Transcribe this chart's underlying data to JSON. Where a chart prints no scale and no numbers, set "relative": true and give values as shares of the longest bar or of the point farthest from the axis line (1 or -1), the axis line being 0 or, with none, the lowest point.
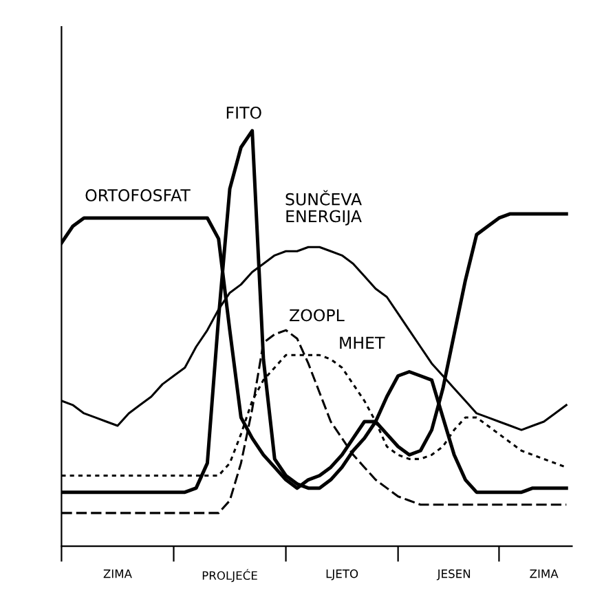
{
  "chart_data": {
    "type": "line",
    "relative": true,
    "tick_labels": "x",
    "grid": false,
    "legend": false,
    "marker": "none",
    "categories": [
      null,
      null,
      null,
      null,
      null,
      "ZIMA",
      null,
      null,
      null,
      null,
      null,
      null,
      null,
      null,
      null,
      "PROLJEĆE",
      null,
      null,
      null,
      null,
      null,
      null,
      null,
      null,
      null,
      "LJETO",
      null,
      null,
      null,
      null,
      null,
      null,
      null,
      null,
      null,
      "JESEN",
      null,
      null,
      null,
      null,
      null,
      null,
      null,
      "ZIMA",
      null,
      null
    ],
    "series": [
      {
        "color": "#000000",
        "line_style": "solid",
        "values": [
          0.73,
          0.77,
          0.79,
          0.79,
          0.79,
          0.79,
          0.79,
          0.79,
          0.79,
          0.79,
          0.79,
          0.79,
          0.79,
          0.79,
          0.74,
          0.52,
          0.31,
          0.26,
          0.22,
          0.19,
          0.16,
          0.14,
          0.16,
          0.17,
          0.19,
          0.22,
          0.26,
          0.3,
          0.3,
          0.27,
          0.24,
          0.22,
          0.23,
          0.28,
          0.38,
          0.51,
          0.64,
          0.75,
          0.77,
          0.79,
          0.8,
          0.8,
          0.8,
          0.8,
          0.8,
          0.8
        ]
      },
      {
        "color": "#000000",
        "line_style": "solid",
        "values": [
          0.13,
          0.13,
          0.13,
          0.13,
          0.13,
          0.13,
          0.13,
          0.13,
          0.13,
          0.13,
          0.13,
          0.13,
          0.14,
          0.2,
          0.55,
          0.86,
          0.96,
          1.0,
          0.45,
          0.21,
          0.17,
          0.15,
          0.14,
          0.14,
          0.16,
          0.19,
          0.23,
          0.26,
          0.3,
          0.36,
          0.41,
          0.42,
          0.41,
          0.4,
          0.31,
          0.22,
          0.16,
          0.13,
          0.13,
          0.13,
          0.13,
          0.13,
          0.14,
          0.14,
          0.14,
          0.14
        ]
      },
      {
        "color": "#000000",
        "line_style": "solid",
        "values": [
          0.35,
          0.34,
          0.32,
          0.31,
          0.3,
          0.29,
          0.32,
          0.34,
          0.36,
          0.39,
          0.41,
          0.43,
          0.48,
          0.52,
          0.57,
          0.61,
          0.63,
          0.66,
          0.68,
          0.7,
          0.71,
          0.71,
          0.72,
          0.72,
          0.71,
          0.7,
          0.68,
          0.65,
          0.62,
          0.6,
          0.56,
          0.52,
          0.48,
          0.44,
          0.41,
          0.38,
          0.35,
          0.32,
          0.31,
          0.3,
          0.29,
          0.28,
          0.29,
          0.3,
          0.32,
          0.34
        ]
      },
      {
        "color": "#000000",
        "line_style": "dashed",
        "values": [
          0.08,
          0.08,
          0.08,
          0.08,
          0.08,
          0.08,
          0.08,
          0.08,
          0.08,
          0.08,
          0.08,
          0.08,
          0.08,
          0.08,
          0.08,
          0.11,
          0.2,
          0.33,
          0.49,
          0.51,
          0.52,
          0.5,
          0.44,
          0.37,
          0.3,
          0.26,
          0.22,
          0.19,
          0.16,
          0.14,
          0.12,
          0.11,
          0.1,
          0.1,
          0.1,
          0.1,
          0.1,
          0.1,
          0.1,
          0.1,
          0.1,
          0.1,
          0.1,
          0.1,
          0.1,
          0.1
        ]
      },
      {
        "color": "#000000",
        "line_style": "dotted",
        "values": [
          0.17,
          0.17,
          0.17,
          0.17,
          0.17,
          0.17,
          0.17,
          0.17,
          0.17,
          0.17,
          0.17,
          0.17,
          0.17,
          0.17,
          0.17,
          0.2,
          0.27,
          0.35,
          0.4,
          0.43,
          0.46,
          0.46,
          0.46,
          0.46,
          0.45,
          0.43,
          0.39,
          0.35,
          0.3,
          0.24,
          0.22,
          0.21,
          0.21,
          0.22,
          0.24,
          0.28,
          0.31,
          0.31,
          0.29,
          0.27,
          0.25,
          0.23,
          0.22,
          0.21,
          0.2,
          0.19
        ]
      }
    ],
    "annotations": [
      "ORTOFOSFAT",
      "FITO",
      "SUNČEVA\nENERGIJA",
      "ZOOPL",
      "MHET"
    ]
  }
}
